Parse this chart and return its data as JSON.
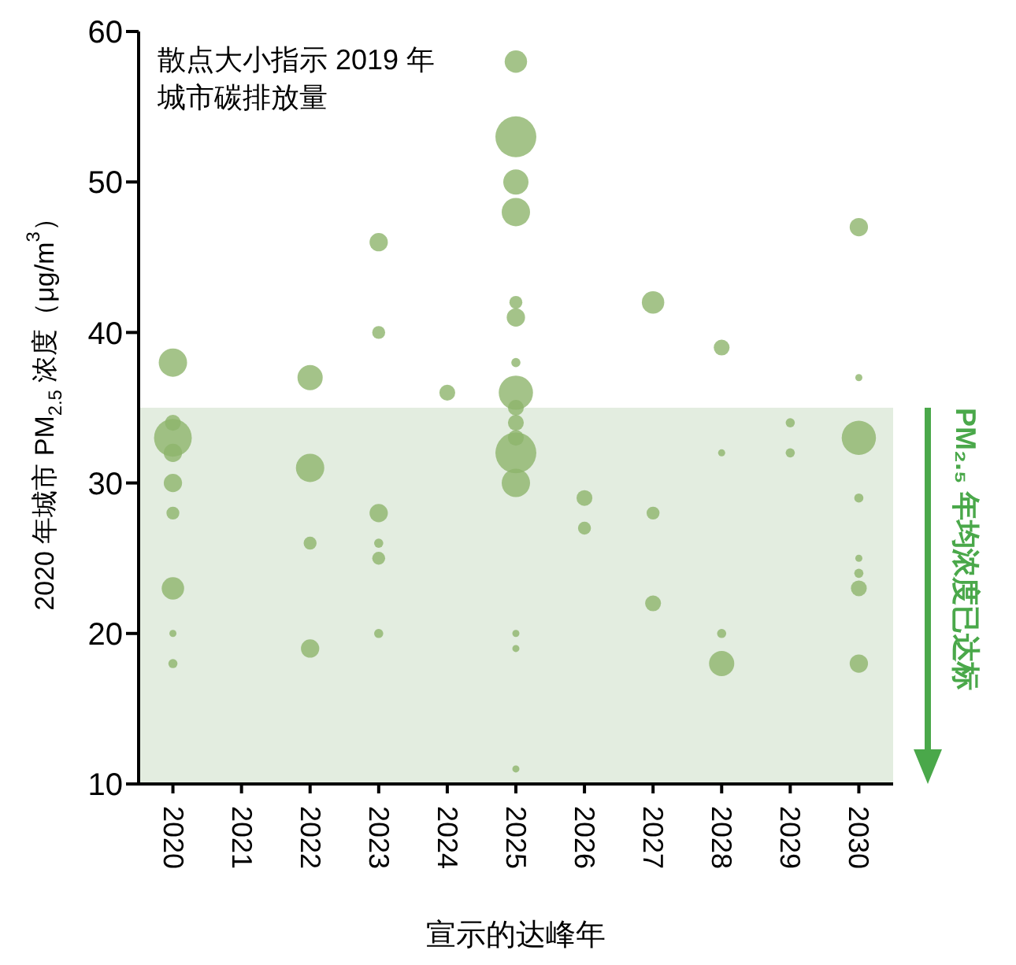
{
  "chart_data": {
    "type": "bubble",
    "xlabel": "宣示的达峰年",
    "ylabel": "2020 年城市 PM$_{2.5}$ 浓度（μg/m$^{3}$）",
    "annotations": [
      "散点大小指示 2019 年城市碳排放量"
    ],
    "xlim": [
      2019.5,
      2030.5
    ],
    "xticks": [
      2020,
      2021,
      2022,
      2023,
      2024,
      2025,
      2026,
      2027,
      2028,
      2029,
      2030
    ],
    "ylim": [
      10,
      60
    ],
    "yticks": [
      10,
      20,
      30,
      40,
      50,
      60
    ],
    "grid": false,
    "legend": false,
    "marker": "circle",
    "bands": [
      {
        "axis": "y",
        "from": 10,
        "to": 35,
        "label": "PM₂.₅ 年均浓度已达标",
        "color": "#e3ede0"
      }
    ],
    "series": [
      {
        "color": "#8db46c",
        "x": [
          2020,
          2020,
          2020,
          2020,
          2020,
          2020,
          2020,
          2020,
          2020,
          2022,
          2022,
          2022,
          2022,
          2023,
          2023,
          2023,
          2023,
          2023,
          2023,
          2024,
          2025,
          2025,
          2025,
          2025,
          2025,
          2025,
          2025,
          2025,
          2025,
          2025,
          2025,
          2025,
          2025,
          2025,
          2025,
          2025,
          2026,
          2026,
          2027,
          2027,
          2027,
          2028,
          2028,
          2028,
          2028,
          2029,
          2029,
          2030,
          2030,
          2030,
          2030,
          2030,
          2030,
          2030,
          2030
        ],
        "values": [
          38,
          33,
          34,
          32,
          30,
          28,
          23,
          20,
          18,
          37,
          31,
          26,
          19,
          46,
          40,
          28,
          26,
          25,
          20,
          36,
          58,
          53,
          50,
          48,
          42,
          41,
          38,
          36,
          35,
          34,
          33,
          32,
          30,
          20,
          19,
          11,
          29,
          27,
          42,
          28,
          22,
          39,
          32,
          20,
          18,
          34,
          32,
          47,
          37,
          33,
          29,
          25,
          24,
          23,
          18
        ],
        "sizes": [
          0.48,
          0.85,
          0.15,
          0.2,
          0.2,
          0.1,
          0.3,
          0.03,
          0.05,
          0.38,
          0.48,
          0.1,
          0.2,
          0.2,
          0.1,
          0.2,
          0.05,
          0.1,
          0.05,
          0.15,
          0.3,
          1,
          0.38,
          0.48,
          0.1,
          0.2,
          0.05,
          0.7,
          0.15,
          0.15,
          0.15,
          1,
          0.48,
          0.03,
          0.03,
          0.03,
          0.15,
          0.1,
          0.3,
          0.1,
          0.15,
          0.15,
          0.03,
          0.05,
          0.38,
          0.05,
          0.05,
          0.2,
          0.03,
          0.7,
          0.05,
          0.03,
          0.05,
          0.15,
          0.2
        ]
      }
    ]
  }
}
